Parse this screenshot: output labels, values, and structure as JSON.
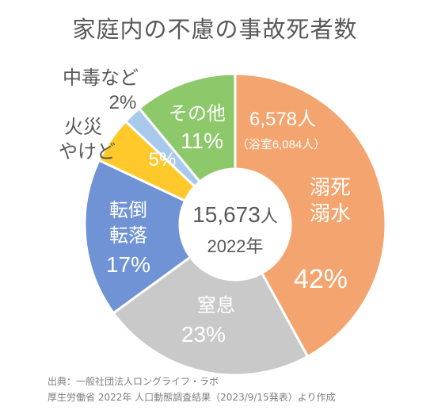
{
  "title": "家庭内の不慮の事故死者数",
  "center": {
    "total": "15,673",
    "unit": "人",
    "year": "2022年"
  },
  "chart_data": {
    "type": "pie",
    "title": "家庭内の不慮の事故死者数",
    "total": 15673,
    "year": 2022,
    "slices": [
      {
        "name": "溺死 溺水",
        "percent": 42,
        "color": "#f4a46e",
        "text_color": "#ffffff",
        "lines": [
          "6,578人",
          "（浴室6,084人）",
          "溺死",
          "溺水",
          "42%"
        ]
      },
      {
        "name": "窒息",
        "percent": 23,
        "color": "#c9c9c9",
        "text_color": "#ffffff",
        "lines": [
          "窒息",
          "23%"
        ]
      },
      {
        "name": "転倒 転落",
        "percent": 17,
        "color": "#6f93d4",
        "text_color": "#ffffff",
        "lines": [
          "転倒",
          "転落",
          "17%"
        ]
      },
      {
        "name": "火災 やけど",
        "percent": 5,
        "color": "#ffc92c",
        "text_color": "#ffffff",
        "lines": [
          "5%"
        ],
        "outside_lines": [
          "火災",
          "やけど"
        ]
      },
      {
        "name": "中毒など",
        "percent": 2,
        "color": "#a9c9ec",
        "text_color": "#595959",
        "lines": [],
        "outside_lines": [
          "中毒など",
          "2%"
        ]
      },
      {
        "name": "その他",
        "percent": 11,
        "color": "#8dc96a",
        "text_color": "#ffffff",
        "lines": [
          "その他",
          "11%"
        ]
      }
    ]
  },
  "source": {
    "line1": "出典：一般社団法人ロングライフ・ラボ",
    "line2": "厚生労働省 2022年 人口動態調査結果（2023/9/15発表）より作成"
  }
}
